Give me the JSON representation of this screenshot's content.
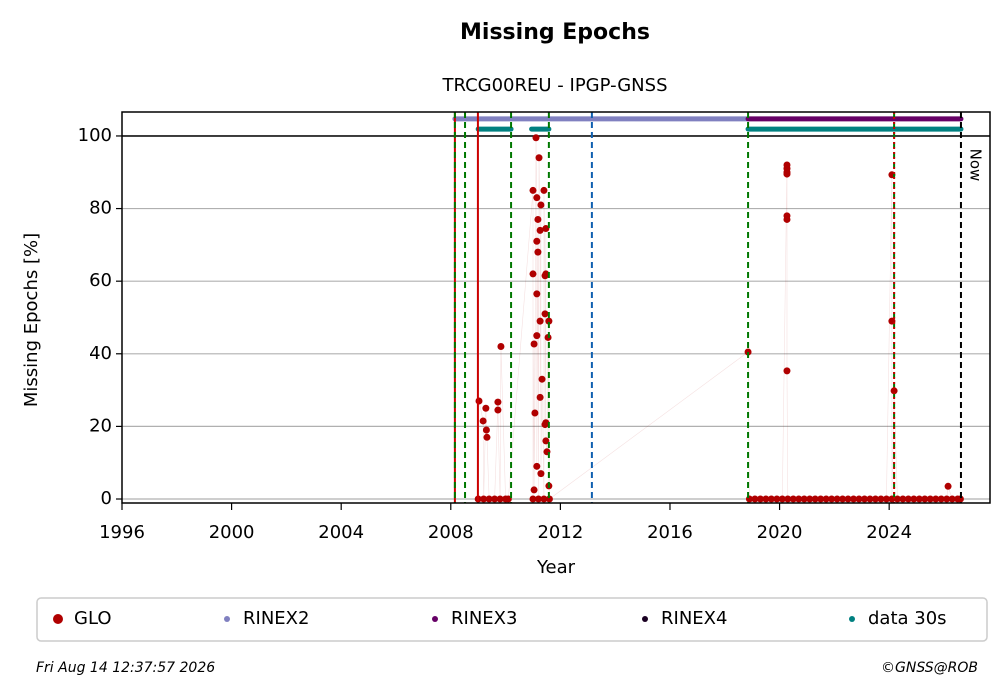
{
  "chart_data": {
    "type": "scatter",
    "title": "Missing Epochs",
    "subtitle": "TRCG00REU - IPGP-GNSS",
    "x_label": "Year",
    "y_label": "Missing Epochs [%]",
    "xlim": [
      1996,
      2027.68
    ],
    "ylim": [
      -1.1,
      106.6
    ],
    "xticks": [
      1996,
      2000,
      2004,
      2008,
      2012,
      2016,
      2020,
      2024
    ],
    "yticks": [
      0,
      20,
      40,
      60,
      80,
      100
    ],
    "grid": true,
    "hline": 100,
    "vlines": [
      {
        "x": 2008.15,
        "color": "#cc0000",
        "style": "solid"
      },
      {
        "x": 2008.99,
        "color": "#cc0000",
        "style": "solid"
      },
      {
        "x": 2008.15,
        "color": "#007700",
        "style": "dashed"
      },
      {
        "x": 2008.52,
        "color": "#007700",
        "style": "dashed"
      },
      {
        "x": 2010.2,
        "color": "#007700",
        "style": "dashed"
      },
      {
        "x": 2011.58,
        "color": "#007700",
        "style": "dashed"
      },
      {
        "x": 2013.15,
        "color": "#1060b0",
        "style": "dashed"
      },
      {
        "x": 2018.85,
        "color": "#007700",
        "style": "dashed"
      },
      {
        "x": 2024.18,
        "color": "#007700",
        "style": "dashed"
      },
      {
        "x": 2024.18,
        "color": "#cc0000",
        "style": "dotted"
      }
    ],
    "now": {
      "x": 2026.62,
      "label": "Now"
    },
    "series": [
      {
        "name": "GLO",
        "color": "#b00000",
        "mode": "dots",
        "x": [
          2009.0,
          2009.03,
          2009.18,
          2009.2,
          2009.28,
          2009.3,
          2009.32,
          2009.4,
          2009.6,
          2009.72,
          2009.72,
          2009.8,
          2009.83,
          2010.0,
          2010.1,
          2011.0,
          2011.0,
          2011.0,
          2011.04,
          2011.04,
          2011.07,
          2011.11,
          2011.14,
          2011.14,
          2011.14,
          2011.14,
          2011.14,
          2011.18,
          2011.18,
          2011.2,
          2011.22,
          2011.26,
          2011.26,
          2011.26,
          2011.29,
          2011.29,
          2011.33,
          2011.4,
          2011.4,
          2011.44,
          2011.44,
          2011.44,
          2011.47,
          2011.47,
          2011.47,
          2011.47,
          2011.51,
          2011.55,
          2011.58,
          2011.58,
          2011.6,
          2018.85,
          2018.9,
          2019.1,
          2019.3,
          2019.5,
          2019.7,
          2019.9,
          2020.1,
          2020.27,
          2020.27,
          2020.27,
          2020.27,
          2020.27,
          2020.27,
          2020.27,
          2020.3,
          2020.5,
          2020.7,
          2020.9,
          2021.1,
          2021.3,
          2021.5,
          2021.7,
          2021.9,
          2022.1,
          2022.3,
          2022.5,
          2022.7,
          2022.9,
          2023.1,
          2023.3,
          2023.5,
          2023.7,
          2023.9,
          2024.1,
          2024.1,
          2024.1,
          2024.18,
          2024.3,
          2024.5,
          2024.7,
          2024.9,
          2025.1,
          2025.3,
          2025.5,
          2025.7,
          2025.9,
          2026.1,
          2026.15,
          2026.3,
          2026.5,
          2026.6
        ],
        "values": [
          0,
          27,
          21.5,
          0,
          25,
          19,
          17,
          0,
          0,
          26.7,
          24.5,
          0,
          42,
          0,
          0,
          85,
          62,
          0,
          42.7,
          2.5,
          23.7,
          99.5,
          83,
          71,
          56.5,
          45,
          9,
          77,
          68,
          0,
          94,
          74,
          49,
          28,
          81,
          7,
          33,
          0,
          85,
          61.5,
          51,
          20.5,
          74.5,
          62,
          21,
          16,
          13,
          44.5,
          3.6,
          49,
          0,
          40.5,
          0,
          0,
          0,
          0,
          0,
          0,
          0,
          92,
          91,
          90,
          89.5,
          78,
          77,
          35.3,
          0,
          0,
          0,
          0,
          0,
          0,
          0,
          0,
          0,
          0,
          0,
          0,
          0,
          0,
          0,
          0,
          0,
          0,
          0,
          89.3,
          49,
          0,
          29.8,
          0,
          0,
          0,
          0,
          0,
          0,
          0,
          0,
          0,
          0,
          3.5,
          0,
          0,
          0
        ]
      },
      {
        "name": "RINEX2",
        "color": "#8080c0",
        "mode": "band",
        "x": [
          2008.15,
          2018.85
        ],
        "values": [
          104.7,
          104.7
        ]
      },
      {
        "name": "RINEX3",
        "color": "#660066",
        "mode": "band",
        "x": [
          2018.85,
          2026.62
        ],
        "values": [
          104.7,
          104.7
        ]
      },
      {
        "name": "RINEX4",
        "color": "#1a0022",
        "mode": "band",
        "x": [],
        "values": []
      },
      {
        "name": "data 30s",
        "color": "#008080",
        "mode": "band",
        "x": [
          2009.0,
          2010.2,
          null,
          2010.95,
          2011.58,
          null,
          2018.85,
          2026.62
        ],
        "values": [
          101.9,
          101.9,
          null,
          101.9,
          101.9,
          null,
          101.9,
          101.9
        ]
      }
    ],
    "footer_left": "Fri Aug 14 12:37:57 2026",
    "footer_right": "©GNSS@ROB"
  }
}
